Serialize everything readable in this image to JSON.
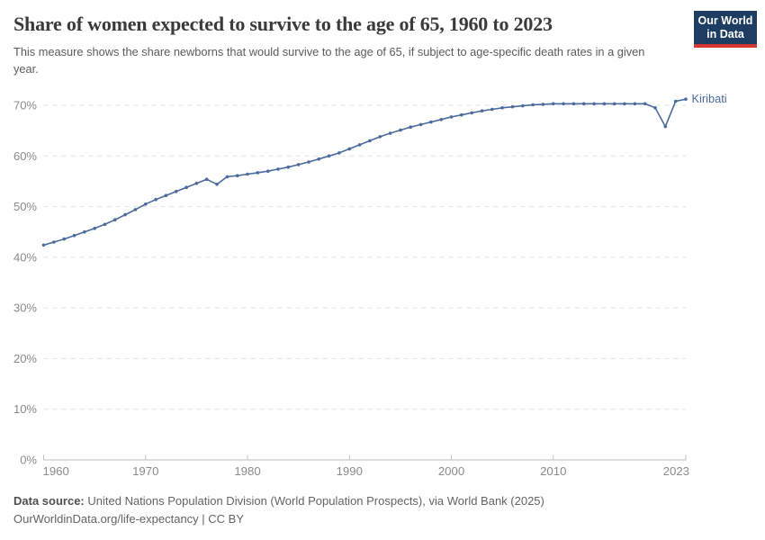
{
  "header": {
    "title": "Share of women expected to survive to the age of 65, 1960 to 2023",
    "subtitle": "This measure shows the share newborns that would survive to the age of 65, if subject to age-specific death rates in a given year."
  },
  "logo": {
    "line1": "Our World",
    "line2": "in Data",
    "bg_color": "#1d3d63",
    "stripe_color": "#d93832"
  },
  "chart_data": {
    "type": "line",
    "title": "Share of women expected to survive to the age of 65, 1960 to 2023",
    "xlabel": "",
    "ylabel": "",
    "xlim": [
      1960,
      2023
    ],
    "ylim": [
      0,
      70
    ],
    "grid": "horizontal-dashed",
    "legend_position": "end-of-line-label",
    "xticks": [
      1960,
      1970,
      1980,
      1990,
      2000,
      2010,
      2023
    ],
    "yticks": [
      0,
      10,
      20,
      30,
      40,
      50,
      60,
      70
    ],
    "ytick_suffix": "%",
    "series": [
      {
        "name": "Kiribati",
        "color": "#4C6A9C",
        "x": [
          1960,
          1961,
          1962,
          1963,
          1964,
          1965,
          1966,
          1967,
          1968,
          1969,
          1970,
          1971,
          1972,
          1973,
          1974,
          1975,
          1976,
          1977,
          1978,
          1979,
          1980,
          1981,
          1982,
          1983,
          1984,
          1985,
          1986,
          1987,
          1988,
          1989,
          1990,
          1991,
          1992,
          1993,
          1994,
          1995,
          1996,
          1997,
          1998,
          1999,
          2000,
          2001,
          2002,
          2003,
          2004,
          2005,
          2006,
          2007,
          2008,
          2009,
          2010,
          2011,
          2012,
          2013,
          2014,
          2015,
          2016,
          2017,
          2018,
          2019,
          2020,
          2021,
          2022,
          2023
        ],
        "values": [
          42.4,
          43.0,
          43.6,
          44.3,
          45.0,
          45.7,
          46.5,
          47.4,
          48.4,
          49.4,
          50.5,
          51.4,
          52.2,
          53.0,
          53.8,
          54.6,
          55.4,
          54.4,
          55.9,
          56.1,
          56.4,
          56.7,
          57.0,
          57.4,
          57.8,
          58.3,
          58.8,
          59.4,
          60.0,
          60.6,
          61.4,
          62.2,
          63.0,
          63.8,
          64.5,
          65.1,
          65.7,
          66.2,
          66.7,
          67.2,
          67.7,
          68.1,
          68.5,
          68.9,
          69.2,
          69.5,
          69.7,
          69.9,
          70.1,
          70.2,
          70.3,
          70.3,
          70.3,
          70.3,
          70.3,
          70.3,
          70.3,
          70.3,
          70.3,
          70.3,
          69.5,
          65.8,
          70.8,
          71.2
        ]
      }
    ],
    "colors": {
      "line": "#4C6A9C",
      "gridline": "#e2e2e2",
      "axis": "#bdbdbd",
      "tick_label": "#8a8a8a"
    }
  },
  "footer": {
    "source_label": "Data source:",
    "source_text": "United Nations Population Division (World Population Prospects), via World Bank (2025)",
    "note": "OurWorldinData.org/life-expectancy | CC BY"
  }
}
